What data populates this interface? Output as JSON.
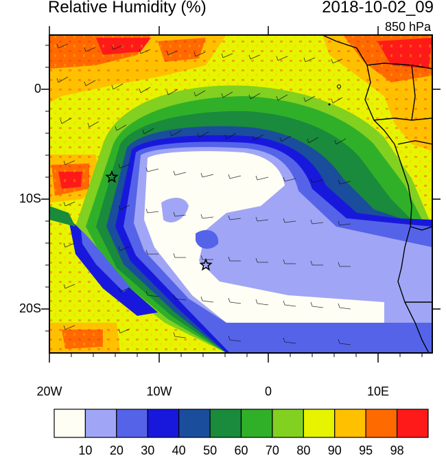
{
  "header": {
    "title": "Relative Humidity (%)",
    "datetime": "2018-10-02_09",
    "level": "850 hPa"
  },
  "axes": {
    "y_ticks": [
      "0",
      "10S",
      "20S"
    ],
    "x_ticks": [
      "20W",
      "10W",
      "0",
      "10E"
    ]
  },
  "colorbar": {
    "labels": [
      "10",
      "20",
      "30",
      "40",
      "50",
      "60",
      "70",
      "80",
      "90",
      "95",
      "98"
    ],
    "colors": [
      "#fffef4",
      "#a0a6f5",
      "#5563e9",
      "#1818dc",
      "#1a4d9c",
      "#1a8a3c",
      "#30b028",
      "#82d020",
      "#e6f400",
      "#ffc000",
      "#ff6a00",
      "#ff1a1a"
    ]
  },
  "map": {
    "markers": [
      {
        "name": "star-marker-west",
        "lon": -14.3,
        "lat": -8.0
      },
      {
        "name": "star-marker-south",
        "lon": -5.7,
        "lat": -16.0
      }
    ]
  }
}
